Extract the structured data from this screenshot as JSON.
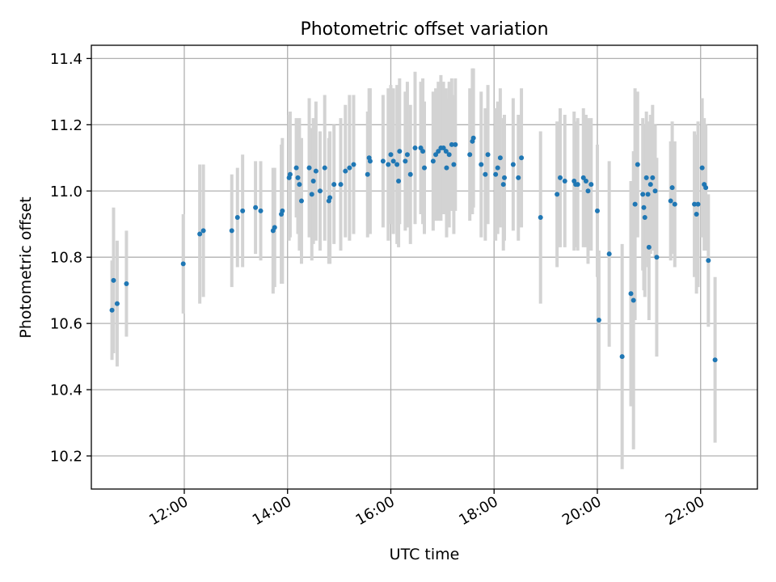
{
  "chart_data": {
    "type": "scatter",
    "title": "Photometric offset variation",
    "xlabel": "UTC time",
    "ylabel": "Photometric offset",
    "x_unit": "hours UTC",
    "xlim": [
      10.2,
      23.1
    ],
    "ylim": [
      10.1,
      11.44
    ],
    "x_ticks": [
      12,
      14,
      16,
      18,
      20,
      22
    ],
    "x_tick_labels": [
      "12:00",
      "14:00",
      "16:00",
      "18:00",
      "20:00",
      "22:00"
    ],
    "y_ticks": [
      10.2,
      10.4,
      10.6,
      10.8,
      11.0,
      11.2,
      11.4
    ],
    "y_tick_labels": [
      "10.2",
      "10.4",
      "10.6",
      "10.8",
      "11.0",
      "11.2",
      "11.4"
    ],
    "grid": true,
    "colors": {
      "points": "#1f77b4",
      "errorbars": "#d3d3d3",
      "grid": "#b0b0b0"
    },
    "series": [
      {
        "points": [
          [
            10.6,
            10.64,
            0.15
          ],
          [
            10.63,
            10.73,
            0.22
          ],
          [
            10.7,
            10.66,
            0.19
          ],
          [
            10.88,
            10.72,
            0.16
          ],
          [
            11.98,
            10.78,
            0.15
          ],
          [
            12.3,
            10.87,
            0.21
          ],
          [
            12.37,
            10.88,
            0.2
          ],
          [
            12.92,
            10.88,
            0.17
          ],
          [
            13.03,
            10.92,
            0.15
          ],
          [
            13.13,
            10.94,
            0.17
          ],
          [
            13.38,
            10.95,
            0.14
          ],
          [
            13.48,
            10.94,
            0.15
          ],
          [
            13.72,
            10.88,
            0.19
          ],
          [
            13.75,
            10.89,
            0.18
          ],
          [
            13.88,
            10.93,
            0.21
          ],
          [
            13.9,
            10.94,
            0.22
          ],
          [
            14.03,
            11.04,
            0.19
          ],
          [
            14.05,
            11.05,
            0.19
          ],
          [
            14.17,
            11.07,
            0.15
          ],
          [
            14.2,
            11.04,
            0.17
          ],
          [
            14.23,
            11.02,
            0.2
          ],
          [
            14.27,
            10.97,
            0.19
          ],
          [
            14.42,
            11.07,
            0.21
          ],
          [
            14.47,
            10.99,
            0.2
          ],
          [
            14.5,
            11.03,
            0.19
          ],
          [
            14.55,
            11.06,
            0.21
          ],
          [
            14.63,
            11.0,
            0.18
          ],
          [
            14.72,
            11.07,
            0.22
          ],
          [
            14.8,
            10.97,
            0.19
          ],
          [
            14.82,
            10.98,
            0.2
          ],
          [
            14.9,
            11.02,
            0.18
          ],
          [
            15.03,
            11.02,
            0.2
          ],
          [
            15.12,
            11.06,
            0.2
          ],
          [
            15.2,
            11.07,
            0.22
          ],
          [
            15.28,
            11.08,
            0.21
          ],
          [
            15.55,
            11.05,
            0.19
          ],
          [
            15.58,
            11.1,
            0.21
          ],
          [
            15.6,
            11.09,
            0.22
          ],
          [
            15.85,
            11.09,
            0.2
          ],
          [
            15.95,
            11.08,
            0.23
          ],
          [
            16.0,
            11.11,
            0.21
          ],
          [
            16.05,
            11.09,
            0.22
          ],
          [
            16.12,
            11.08,
            0.24
          ],
          [
            16.15,
            11.03,
            0.2
          ],
          [
            16.17,
            11.12,
            0.22
          ],
          [
            16.28,
            11.09,
            0.21
          ],
          [
            16.32,
            11.11,
            0.22
          ],
          [
            16.38,
            11.05,
            0.21
          ],
          [
            16.47,
            11.13,
            0.23
          ],
          [
            16.58,
            11.13,
            0.2
          ],
          [
            16.62,
            11.12,
            0.22
          ],
          [
            16.65,
            11.07,
            0.2
          ],
          [
            16.82,
            11.09,
            0.21
          ],
          [
            16.87,
            11.11,
            0.2
          ],
          [
            16.92,
            11.12,
            0.21
          ],
          [
            16.97,
            11.13,
            0.22
          ],
          [
            17.02,
            11.13,
            0.2
          ],
          [
            17.07,
            11.12,
            0.19
          ],
          [
            17.08,
            11.07,
            0.21
          ],
          [
            17.13,
            11.11,
            0.22
          ],
          [
            17.18,
            11.14,
            0.2
          ],
          [
            17.22,
            11.08,
            0.21
          ],
          [
            17.25,
            11.14,
            0.2
          ],
          [
            17.53,
            11.11,
            0.2
          ],
          [
            17.58,
            11.15,
            0.22
          ],
          [
            17.6,
            11.16,
            0.21
          ],
          [
            17.75,
            11.08,
            0.22
          ],
          [
            17.83,
            11.05,
            0.2
          ],
          [
            17.88,
            11.11,
            0.21
          ],
          [
            18.03,
            11.05,
            0.2
          ],
          [
            18.07,
            11.07,
            0.2
          ],
          [
            18.12,
            11.1,
            0.21
          ],
          [
            18.18,
            11.02,
            0.2
          ],
          [
            18.2,
            11.04,
            0.19
          ],
          [
            18.37,
            11.08,
            0.2
          ],
          [
            18.47,
            11.04,
            0.19
          ],
          [
            18.53,
            11.1,
            0.21
          ],
          [
            18.9,
            10.92,
            0.26
          ],
          [
            19.22,
            10.99,
            0.22
          ],
          [
            19.28,
            11.04,
            0.21
          ],
          [
            19.37,
            11.03,
            0.2
          ],
          [
            19.55,
            11.03,
            0.21
          ],
          [
            19.58,
            11.02,
            0.19
          ],
          [
            19.62,
            11.02,
            0.2
          ],
          [
            19.73,
            11.04,
            0.21
          ],
          [
            19.78,
            11.03,
            0.2
          ],
          [
            19.82,
            11.0,
            0.22
          ],
          [
            19.88,
            11.02,
            0.2
          ],
          [
            20.0,
            10.94,
            0.2
          ],
          [
            20.03,
            10.61,
            0.21
          ],
          [
            20.23,
            10.81,
            0.28
          ],
          [
            20.48,
            10.5,
            0.34
          ],
          [
            20.65,
            10.69,
            0.34
          ],
          [
            20.7,
            10.67,
            0.45
          ],
          [
            20.73,
            10.96,
            0.35
          ],
          [
            20.78,
            11.08,
            0.22
          ],
          [
            20.88,
            10.99,
            0.23
          ],
          [
            20.9,
            10.95,
            0.25
          ],
          [
            20.92,
            10.92,
            0.24
          ],
          [
            20.95,
            11.04,
            0.2
          ],
          [
            20.98,
            10.99,
            0.22
          ],
          [
            21.0,
            10.83,
            0.22
          ],
          [
            21.03,
            11.02,
            0.21
          ],
          [
            21.07,
            11.04,
            0.22
          ],
          [
            21.12,
            11.0,
            0.2
          ],
          [
            21.15,
            10.8,
            0.3
          ],
          [
            21.42,
            10.97,
            0.18
          ],
          [
            21.45,
            11.01,
            0.2
          ],
          [
            21.5,
            10.96,
            0.19
          ],
          [
            21.88,
            10.96,
            0.22
          ],
          [
            21.92,
            10.93,
            0.24
          ],
          [
            21.95,
            10.96,
            0.25
          ],
          [
            22.03,
            11.07,
            0.21
          ],
          [
            22.07,
            11.02,
            0.2
          ],
          [
            22.1,
            11.01,
            0.19
          ],
          [
            22.15,
            10.79,
            0.2
          ],
          [
            22.28,
            10.49,
            0.25
          ]
        ]
      }
    ]
  }
}
